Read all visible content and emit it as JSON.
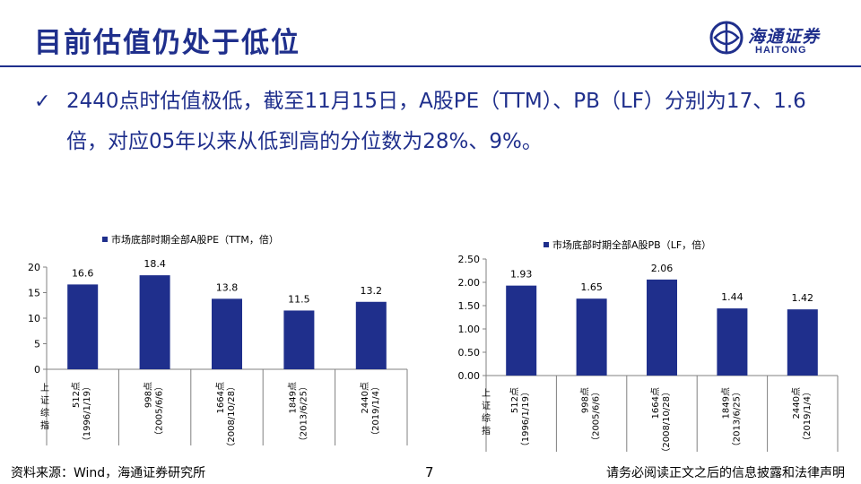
{
  "header": {
    "title": "目前估值仍处于低位",
    "logo_cn": "海通证券",
    "logo_en": "HAITONG"
  },
  "bullet": {
    "text": "2440点时估值极低，截至11月15日，A股PE（TTM）、PB（LF）分别为17、1.6倍，对应05年以来从低到高的分位数为28%、9%。"
  },
  "colors": {
    "accent": "#1f2f8c",
    "bar": "#1f2f8c"
  },
  "chart_data": [
    {
      "type": "bar",
      "legend": "市场底部时期全部A股PE（TTM，倍）",
      "categories": [
        "512点（1996/1/19）",
        "998点（2005/6/6）",
        "1664点（2008/10/28）",
        "1849点（2013/6/25）",
        "2440点（2019/1/4）"
      ],
      "values": [
        16.6,
        18.4,
        13.8,
        11.5,
        13.2
      ],
      "value_labels": [
        "16.6",
        "18.4",
        "13.8",
        "11.5",
        "13.2"
      ],
      "yticks": [
        "0",
        "5",
        "10",
        "15",
        "20"
      ],
      "ylim": [
        0,
        20
      ],
      "xlabel": "上证综指"
    },
    {
      "type": "bar",
      "legend": "市场底部时期全部A股PB（LF，倍）",
      "categories": [
        "512点（1996/1/19）",
        "998点（2005/6/6）",
        "1664点（2008/10/28）",
        "1849点（2013/6/25）",
        "2440点（2019/1/4）"
      ],
      "values": [
        1.93,
        1.65,
        2.06,
        1.44,
        1.42
      ],
      "value_labels": [
        "1.93",
        "1.65",
        "2.06",
        "1.44",
        "1.42"
      ],
      "yticks": [
        "0.00",
        "0.50",
        "1.00",
        "1.50",
        "2.00",
        "2.50"
      ],
      "ylim": [
        0,
        2.5
      ],
      "xlabel": "上证综指"
    }
  ],
  "footer": {
    "source": "资料来源：Wind，海通证券研究所",
    "page": "7",
    "disclaimer": "请务必阅读正文之后的信息披露和法律声明"
  }
}
